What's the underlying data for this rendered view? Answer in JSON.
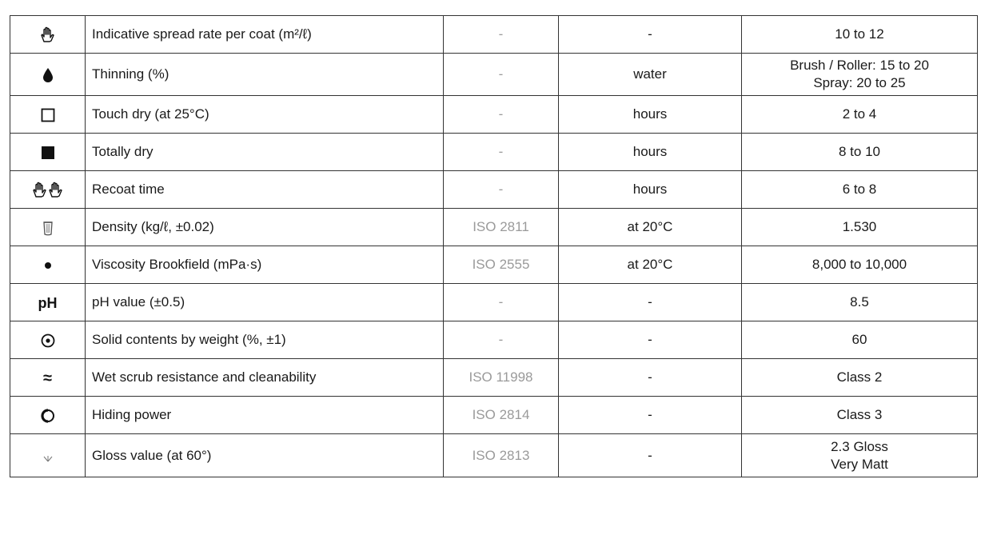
{
  "rows": [
    {
      "icon": "hands-icon",
      "property": "Indicative spread rate per coat (m²/ℓ)",
      "standard": "-",
      "unit": "-",
      "value": [
        "10 to 12"
      ]
    },
    {
      "icon": "drop-icon",
      "property": "Thinning (%)",
      "standard": "-",
      "unit": "water",
      "value": [
        "Brush / Roller: 15 to 20",
        "Spray: 20 to 25"
      ]
    },
    {
      "icon": "empty-square-icon",
      "property": "Touch dry (at 25°C)",
      "standard": "-",
      "unit": "hours",
      "value": [
        "2 to 4"
      ]
    },
    {
      "icon": "filled-square-icon",
      "property": "Totally dry",
      "standard": "-",
      "unit": "hours",
      "value": [
        "8 to 10"
      ]
    },
    {
      "icon": "double-hands-icon",
      "property": "Recoat time",
      "standard": "-",
      "unit": "hours",
      "value": [
        "6 to 8"
      ]
    },
    {
      "icon": "container-icon",
      "property": "Density (kg/ℓ, ±0.02)",
      "standard": "ISO 2811",
      "unit": "at 20°C",
      "value": [
        "1.530"
      ]
    },
    {
      "icon": "dot-icon",
      "property": "Viscosity Brookfield (mPa·s)",
      "standard": "ISO 2555",
      "unit": "at 20°C",
      "value": [
        "8,000 to 10,000"
      ]
    },
    {
      "icon": "ph-icon",
      "icon_text": "pH",
      "property": "pH value (±0.5)",
      "standard": "-",
      "unit": "-",
      "value": [
        "8.5"
      ]
    },
    {
      "icon": "target-icon",
      "property": "Solid contents by weight (%, ±1)",
      "standard": "-",
      "unit": "-",
      "value": [
        "60"
      ]
    },
    {
      "icon": "approx-icon",
      "icon_text": "≈",
      "property": "Wet scrub resistance and cleanability",
      "standard": "ISO 11998",
      "unit": "-",
      "value": [
        "Class 2"
      ]
    },
    {
      "icon": "half-circle-icon",
      "property": "Hiding power",
      "standard": "ISO 2814",
      "unit": "-",
      "value": [
        "Class 3"
      ]
    },
    {
      "icon": "gloss-icon",
      "property": "Gloss value (at 60°)",
      "standard": "ISO 2813",
      "unit": "-",
      "value": [
        "2.3 Gloss",
        "Very Matt"
      ]
    }
  ]
}
